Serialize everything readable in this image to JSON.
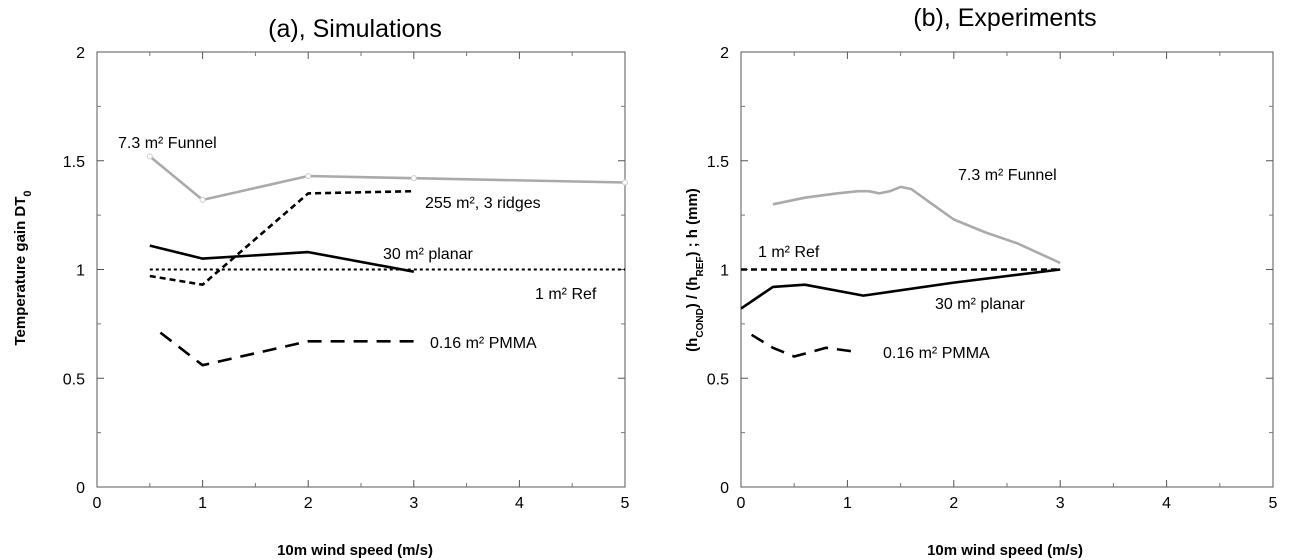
{
  "chart_data": [
    {
      "type": "line",
      "title": "(a), Simulations",
      "xlabel": "10m wind speed (m/s)",
      "ylabel": "Temperature gain DT",
      "ylabel_sub": "0",
      "xlim": [
        0,
        5
      ],
      "ylim": [
        0,
        2
      ],
      "xticks": [
        "0",
        "1",
        "2",
        "3",
        "4",
        "5"
      ],
      "yticks": [
        "0",
        "0.5",
        "1",
        "1.5",
        "2"
      ],
      "grid": false,
      "series": [
        {
          "name": "7.3 m² Funnel",
          "color": "#aaaaaa",
          "dash": "solid",
          "x": [
            0.5,
            1,
            2,
            3,
            5
          ],
          "y": [
            1.52,
            1.32,
            1.43,
            1.42,
            1.4
          ]
        },
        {
          "name": "255 m², 3 ridges",
          "color": "#000000",
          "dash": "dashed",
          "x": [
            0.5,
            1,
            2,
            3
          ],
          "y": [
            0.97,
            0.93,
            1.35,
            1.36
          ]
        },
        {
          "name": "30 m² planar",
          "color": "#000000",
          "dash": "solid",
          "x": [
            0.5,
            1,
            2,
            3
          ],
          "y": [
            1.11,
            1.05,
            1.08,
            0.99
          ]
        },
        {
          "name": "1 m² Ref",
          "color": "#000000",
          "dash": "dotted",
          "x": [
            0.5,
            5
          ],
          "y": [
            1.0,
            1.0
          ]
        },
        {
          "name": "0.16 m² PMMA",
          "color": "#000000",
          "dash": "longdash",
          "x": [
            0.6,
            1,
            2,
            3
          ],
          "y": [
            0.71,
            0.56,
            0.67,
            0.67
          ]
        }
      ]
    },
    {
      "type": "line",
      "title": "(b), Experiments",
      "xlabel": "10m wind speed (m/s)",
      "ylabel_parts": [
        "(h",
        "COND",
        ") / (h",
        "REF",
        ") ; h (mm)"
      ],
      "xlim": [
        0,
        5
      ],
      "ylim": [
        0,
        2
      ],
      "xticks": [
        "0",
        "1",
        "2",
        "3",
        "4",
        "5"
      ],
      "yticks": [
        "0",
        "0.5",
        "1",
        "1.5",
        "2"
      ],
      "grid": false,
      "series": [
        {
          "name": "7.3 m² Funnel",
          "color": "#aaaaaa",
          "dash": "solid",
          "x": [
            0.3,
            0.6,
            0.9,
            1.1,
            1.2,
            1.3,
            1.4,
            1.5,
            1.6,
            1.8,
            2.0,
            2.3,
            2.6,
            3.0
          ],
          "y": [
            1.3,
            1.33,
            1.35,
            1.36,
            1.36,
            1.35,
            1.36,
            1.38,
            1.37,
            1.3,
            1.23,
            1.17,
            1.12,
            1.03
          ]
        },
        {
          "name": "1 m² Ref",
          "color": "#000000",
          "dash": "dashed",
          "x": [
            0,
            3.0
          ],
          "y": [
            1.0,
            1.0
          ]
        },
        {
          "name": "30 m² planar",
          "color": "#000000",
          "dash": "solid",
          "x": [
            0,
            0.3,
            0.6,
            1.15,
            2.0,
            3.0
          ],
          "y": [
            0.82,
            0.92,
            0.93,
            0.88,
            0.94,
            1.0
          ]
        },
        {
          "name": "0.16 m² PMMA",
          "color": "#000000",
          "dash": "longdash",
          "x": [
            0.1,
            0.3,
            0.5,
            0.8,
            1.1
          ],
          "y": [
            0.7,
            0.64,
            0.6,
            0.64,
            0.62
          ]
        }
      ]
    }
  ]
}
